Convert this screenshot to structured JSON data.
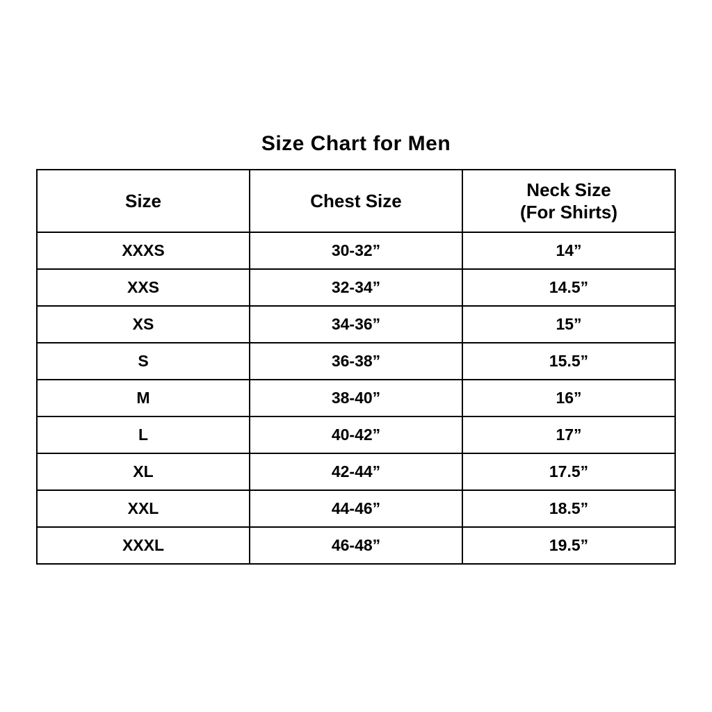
{
  "page": {
    "title": "Size Chart for Men",
    "background_color": "#ffffff",
    "text_color": "#000000",
    "border_color": "#000000"
  },
  "table": {
    "headers": {
      "size": "Size",
      "chest": "Chest Size",
      "neck_line1": "Neck Size",
      "neck_line2": "(For Shirts)"
    },
    "rows": [
      {
        "size": "XXXS",
        "chest": "30-32”",
        "neck": "14”"
      },
      {
        "size": "XXS",
        "chest": "32-34”",
        "neck": "14.5”"
      },
      {
        "size": "XS",
        "chest": "34-36”",
        "neck": "15”"
      },
      {
        "size": "S",
        "chest": "36-38”",
        "neck": "15.5”"
      },
      {
        "size": "M",
        "chest": "38-40”",
        "neck": "16”"
      },
      {
        "size": "L",
        "chest": "40-42”",
        "neck": "17”"
      },
      {
        "size": "XL",
        "chest": "42-44”",
        "neck": "17.5”"
      },
      {
        "size": "XXL",
        "chest": "44-46”",
        "neck": "18.5”"
      },
      {
        "size": "XXXL",
        "chest": "46-48”",
        "neck": "19.5”"
      }
    ]
  },
  "chart_data": {
    "type": "table",
    "title": "Size Chart for Men",
    "columns": [
      "Size",
      "Chest Size",
      "Neck Size (For Shirts)"
    ],
    "rows": [
      [
        "XXXS",
        "30-32”",
        "14”"
      ],
      [
        "XXS",
        "32-34”",
        "14.5”"
      ],
      [
        "XS",
        "34-36”",
        "15”"
      ],
      [
        "S",
        "36-38”",
        "15.5”"
      ],
      [
        "M",
        "38-40”",
        "16”"
      ],
      [
        "L",
        "40-42”",
        "17”"
      ],
      [
        "XL",
        "42-44”",
        "17.5”"
      ],
      [
        "XXL",
        "44-46”",
        "18.5”"
      ],
      [
        "XXXL",
        "46-48”",
        "19.5”"
      ]
    ],
    "legend_position": "none",
    "grid": true
  }
}
